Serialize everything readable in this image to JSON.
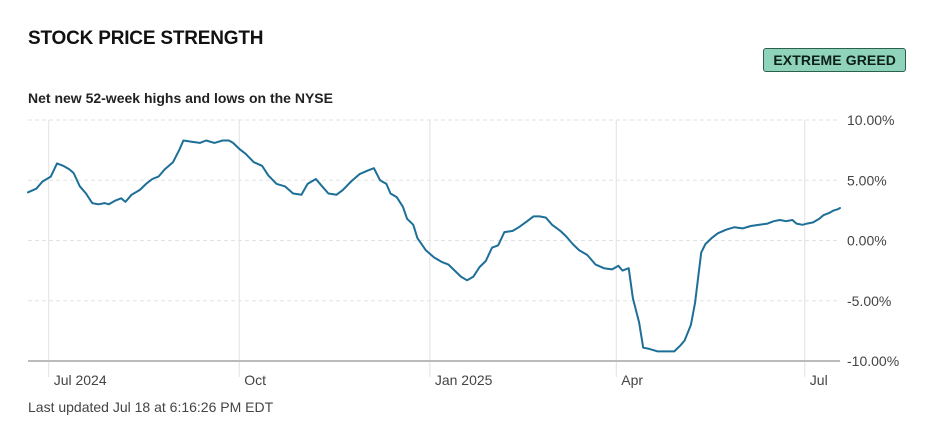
{
  "widget": {
    "title": "STOCK PRICE STRENGTH",
    "badge": "EXTREME GREED",
    "footer": "Last updated Jul 18 at 6:16:26 PM EDT"
  },
  "colors": {
    "line": "#1d6f98",
    "badge_bg": "#8fd3bb",
    "grid": "#e2e2e2",
    "baseline": "#bbbbbb"
  },
  "chart_data": {
    "type": "line",
    "title": "Net new 52-week highs and lows on the NYSE",
    "xlabel": "",
    "ylabel": "",
    "x_ticks": [
      "Jul 2024",
      "Oct",
      "Jan 2025",
      "Apr",
      "Jul"
    ],
    "x_tick_dates": [
      "2024-07-01",
      "2024-10-01",
      "2025-01-01",
      "2025-04-01",
      "2025-07-01"
    ],
    "y_ticks": [
      "10.00%",
      "5.00%",
      "0.00%",
      "-5.00%",
      "-10.00%"
    ],
    "ylim": [
      -10,
      10
    ],
    "xlim": [
      "2024-06-21",
      "2025-07-18"
    ],
    "grid": true,
    "series": [
      {
        "values": [
          [
            "2024-06-21",
            4.0
          ],
          [
            "2024-06-25",
            4.3
          ],
          [
            "2024-06-28",
            4.9
          ],
          [
            "2024-07-02",
            5.3
          ],
          [
            "2024-07-05",
            6.4
          ],
          [
            "2024-07-08",
            6.2
          ],
          [
            "2024-07-11",
            5.9
          ],
          [
            "2024-07-13",
            5.6
          ],
          [
            "2024-07-16",
            4.5
          ],
          [
            "2024-07-19",
            3.9
          ],
          [
            "2024-07-22",
            3.1
          ],
          [
            "2024-07-25",
            3.0
          ],
          [
            "2024-07-28",
            3.1
          ],
          [
            "2024-07-30",
            3.0
          ],
          [
            "2024-08-02",
            3.3
          ],
          [
            "2024-08-05",
            3.5
          ],
          [
            "2024-08-07",
            3.2
          ],
          [
            "2024-08-10",
            3.8
          ],
          [
            "2024-08-14",
            4.2
          ],
          [
            "2024-08-17",
            4.7
          ],
          [
            "2024-08-20",
            5.1
          ],
          [
            "2024-08-23",
            5.3
          ],
          [
            "2024-08-26",
            5.9
          ],
          [
            "2024-08-30",
            6.5
          ],
          [
            "2024-09-02",
            7.5
          ],
          [
            "2024-09-04",
            8.3
          ],
          [
            "2024-09-08",
            8.2
          ],
          [
            "2024-09-12",
            8.1
          ],
          [
            "2024-09-15",
            8.3
          ],
          [
            "2024-09-19",
            8.1
          ],
          [
            "2024-09-23",
            8.3
          ],
          [
            "2024-09-26",
            8.3
          ],
          [
            "2024-09-28",
            8.1
          ],
          [
            "2024-10-01",
            7.6
          ],
          [
            "2024-10-04",
            7.2
          ],
          [
            "2024-10-08",
            6.5
          ],
          [
            "2024-10-12",
            6.2
          ],
          [
            "2024-10-15",
            5.4
          ],
          [
            "2024-10-19",
            4.7
          ],
          [
            "2024-10-23",
            4.5
          ],
          [
            "2024-10-27",
            3.9
          ],
          [
            "2024-10-31",
            3.8
          ],
          [
            "2024-11-03",
            4.7
          ],
          [
            "2024-11-07",
            5.1
          ],
          [
            "2024-11-10",
            4.5
          ],
          [
            "2024-11-13",
            3.9
          ],
          [
            "2024-11-17",
            3.8
          ],
          [
            "2024-11-20",
            4.2
          ],
          [
            "2024-11-24",
            4.9
          ],
          [
            "2024-11-28",
            5.5
          ],
          [
            "2024-12-02",
            5.8
          ],
          [
            "2024-12-05",
            6.0
          ],
          [
            "2024-12-08",
            5.0
          ],
          [
            "2024-12-11",
            4.7
          ],
          [
            "2024-12-13",
            3.9
          ],
          [
            "2024-12-16",
            3.6
          ],
          [
            "2024-12-19",
            2.8
          ],
          [
            "2024-12-21",
            1.8
          ],
          [
            "2024-12-24",
            1.3
          ],
          [
            "2024-12-26",
            0.2
          ],
          [
            "2024-12-30",
            -0.8
          ],
          [
            "2025-01-03",
            -1.4
          ],
          [
            "2025-01-07",
            -1.8
          ],
          [
            "2025-01-10",
            -2.0
          ],
          [
            "2025-01-13",
            -2.5
          ],
          [
            "2025-01-16",
            -3.0
          ],
          [
            "2025-01-19",
            -3.3
          ],
          [
            "2025-01-22",
            -3.0
          ],
          [
            "2025-01-25",
            -2.2
          ],
          [
            "2025-01-28",
            -1.7
          ],
          [
            "2025-01-31",
            -0.6
          ],
          [
            "2025-02-03",
            -0.4
          ],
          [
            "2025-02-06",
            0.7
          ],
          [
            "2025-02-10",
            0.8
          ],
          [
            "2025-02-13",
            1.1
          ],
          [
            "2025-02-17",
            1.6
          ],
          [
            "2025-02-20",
            2.0
          ],
          [
            "2025-02-23",
            2.0
          ],
          [
            "2025-02-26",
            1.9
          ],
          [
            "2025-03-01",
            1.3
          ],
          [
            "2025-03-05",
            0.8
          ],
          [
            "2025-03-08",
            0.3
          ],
          [
            "2025-03-11",
            -0.3
          ],
          [
            "2025-03-14",
            -0.8
          ],
          [
            "2025-03-18",
            -1.2
          ],
          [
            "2025-03-22",
            -2.0
          ],
          [
            "2025-03-26",
            -2.3
          ],
          [
            "2025-03-30",
            -2.4
          ],
          [
            "2025-04-02",
            -2.1
          ],
          [
            "2025-04-04",
            -2.5
          ],
          [
            "2025-04-07",
            -2.3
          ],
          [
            "2025-04-09",
            -4.8
          ],
          [
            "2025-04-12",
            -6.8
          ],
          [
            "2025-04-14",
            -8.9
          ],
          [
            "2025-04-17",
            -9.0
          ],
          [
            "2025-04-21",
            -9.2
          ],
          [
            "2025-04-25",
            -9.2
          ],
          [
            "2025-04-29",
            -9.2
          ],
          [
            "2025-05-02",
            -8.7
          ],
          [
            "2025-05-04",
            -8.3
          ],
          [
            "2025-05-07",
            -7.0
          ],
          [
            "2025-05-09",
            -5.2
          ],
          [
            "2025-05-12",
            -1.0
          ],
          [
            "2025-05-14",
            -0.3
          ],
          [
            "2025-05-17",
            0.2
          ],
          [
            "2025-05-20",
            0.6
          ],
          [
            "2025-05-24",
            0.9
          ],
          [
            "2025-05-28",
            1.1
          ],
          [
            "2025-06-01",
            1.0
          ],
          [
            "2025-06-05",
            1.2
          ],
          [
            "2025-06-09",
            1.3
          ],
          [
            "2025-06-13",
            1.4
          ],
          [
            "2025-06-16",
            1.6
          ],
          [
            "2025-06-19",
            1.7
          ],
          [
            "2025-06-22",
            1.6
          ],
          [
            "2025-06-25",
            1.7
          ],
          [
            "2025-06-27",
            1.4
          ],
          [
            "2025-06-30",
            1.3
          ],
          [
            "2025-07-02",
            1.4
          ],
          [
            "2025-07-05",
            1.5
          ],
          [
            "2025-07-08",
            1.8
          ],
          [
            "2025-07-10",
            2.1
          ],
          [
            "2025-07-13",
            2.3
          ],
          [
            "2025-07-15",
            2.5
          ],
          [
            "2025-07-17",
            2.6
          ],
          [
            "2025-07-18",
            2.7
          ]
        ]
      }
    ]
  }
}
